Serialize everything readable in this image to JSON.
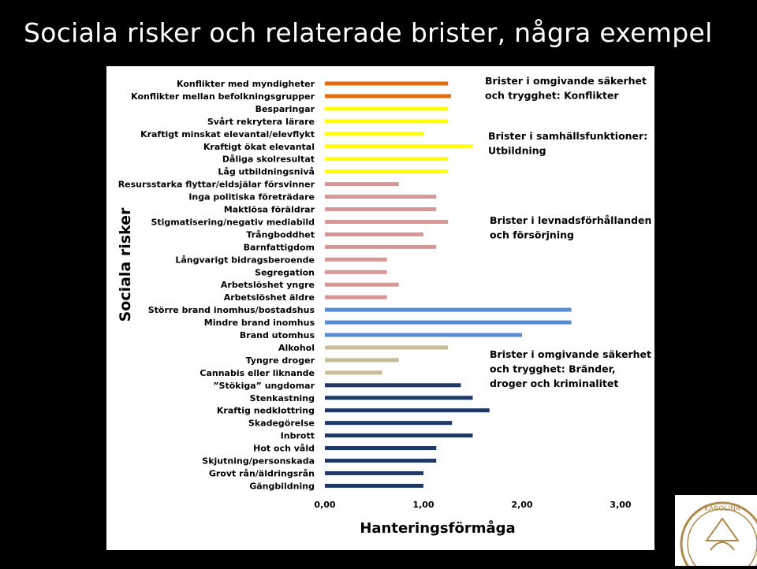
{
  "slide": {
    "title": "Sociala risker och relaterade brister,  några exempel"
  },
  "chart_data": {
    "type": "bar",
    "orientation": "horizontal",
    "title": "",
    "xlabel": "Hanteringsförmåga",
    "ylabel": "Sociala risker",
    "xlim": [
      0,
      3
    ],
    "xticks": [
      "0,00",
      "1,00",
      "2,00",
      "3,00"
    ],
    "grid": false,
    "categories": [
      "Konflikter med myndigheter",
      "Konflikter mellan befolkningsgrupper",
      "Besparingar",
      "Svårt rekrytera lärare",
      "Kraftigt minskat elevantal/elevflykt",
      "Kraftigt ökat elevantal",
      "Dåliga skolresultat",
      "Låg utbildningsnivå",
      "Resursstarka flyttar/eldsjälar försvinner",
      "Inga politiska företrädare",
      "Maktlösa föräldrar",
      "Stigmatisering/negativ mediabild",
      "Trångboddhet",
      "Barnfattigdom",
      "Långvarigt bidragsberoende",
      "Segregation",
      "Arbetslöshet yngre",
      "Arbetslöshet äldre",
      "Större brand inomhus/bostadshus",
      "Mindre brand inomhus",
      "Brand utomhus",
      "Alkohol",
      "Tyngre droger",
      "Cannabis eller liknande",
      "”Stökiga” ungdomar",
      "Stenkastning",
      "Kraftig nedklottring",
      "Skadegörelse",
      "Inbrott",
      "Hot och våld",
      "Skjutning/personskada",
      "Grovt rån/äldringsrån",
      "Gängbildning"
    ],
    "values": [
      1.25,
      1.28,
      1.25,
      1.25,
      1.0,
      1.5,
      1.25,
      1.25,
      0.75,
      1.13,
      1.13,
      1.25,
      1.0,
      1.13,
      0.63,
      0.63,
      0.75,
      0.63,
      2.5,
      2.5,
      2.0,
      1.25,
      0.75,
      0.58,
      1.38,
      1.5,
      1.67,
      1.29,
      1.5,
      1.13,
      1.13,
      1.0,
      1.0
    ],
    "groups": [
      0,
      0,
      1,
      1,
      1,
      1,
      1,
      1,
      2,
      2,
      2,
      2,
      2,
      2,
      2,
      2,
      2,
      2,
      3,
      3,
      3,
      4,
      4,
      4,
      5,
      5,
      5,
      5,
      5,
      5,
      5,
      5,
      5
    ],
    "group_colors": [
      "#E46C0A",
      "#FFFF00",
      "#D99694",
      "#558ED5",
      "#C4BD97",
      "#1F3864"
    ],
    "annotations": [
      {
        "text": [
          "Brister i omgivande säkerhet",
          "och trygghet: Konflikter"
        ]
      },
      {
        "text": [
          "Brister i samhällsfunktioner:",
          "Utbildning"
        ]
      },
      {
        "text": [
          "Brister i levnadsförhållanden",
          "och försörjning"
        ]
      },
      {
        "text": [
          "Brister i omgivande säkerhet",
          "och trygghet: Bränder,",
          "droger och kriminalitet"
        ]
      }
    ]
  },
  "logo": {
    "seal_text": "KAROLINA"
  }
}
